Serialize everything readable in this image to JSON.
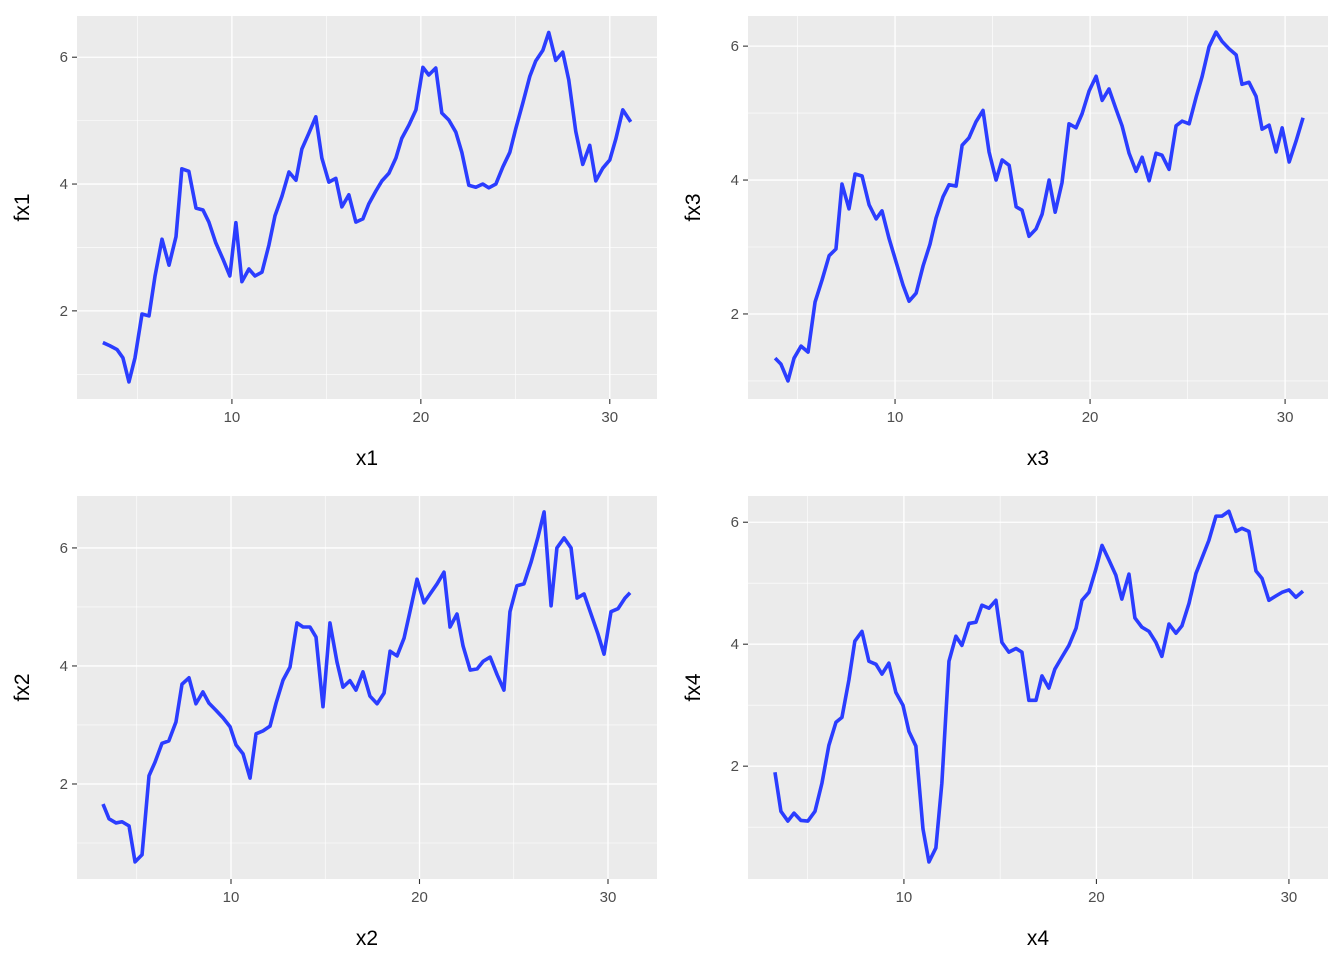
{
  "chart_data": [
    {
      "type": "line",
      "xlabel": "x1",
      "ylabel": "fx1",
      "xlim": [
        1.8,
        32.5
      ],
      "ylim": [
        0.61,
        6.65
      ],
      "xticks": [
        10,
        20,
        30
      ],
      "yticks": [
        2,
        4,
        6
      ],
      "x_minor_ticks": [
        5,
        15,
        25
      ],
      "y_minor_ticks": [
        1,
        3,
        5
      ],
      "grid": true,
      "series": [
        {
          "color": "#2b3dff",
          "x": [
            3.17,
            3.54,
            3.92,
            4.23,
            4.55,
            4.87,
            5.24,
            5.61,
            5.93,
            6.3,
            6.67,
            7.04,
            7.35,
            7.72,
            8.1,
            8.47,
            8.78,
            9.15,
            9.52,
            9.89,
            10.21,
            10.53,
            10.9,
            11.22,
            11.59,
            11.96,
            12.28,
            12.65,
            13.02,
            13.39,
            13.7,
            14.07,
            14.44,
            14.76,
            15.13,
            15.5,
            15.82,
            16.19,
            16.56,
            16.93,
            17.25,
            17.62,
            17.94,
            18.31,
            18.68,
            18.99,
            19.37,
            19.74,
            20.11,
            20.42,
            20.79,
            21.11,
            21.48,
            21.85,
            22.17,
            22.54,
            22.91,
            23.28,
            23.6,
            23.97,
            24.34,
            24.71,
            25.03,
            25.4,
            25.77,
            26.08,
            26.46,
            26.77,
            27.14,
            27.51,
            27.83,
            28.2,
            28.57,
            28.94,
            29.26,
            29.63,
            30.0,
            30.32,
            30.69,
            31.11
          ],
          "values": [
            1.5,
            1.45,
            1.39,
            1.26,
            0.88,
            1.26,
            1.95,
            1.92,
            2.55,
            3.13,
            2.72,
            3.17,
            4.24,
            4.2,
            3.62,
            3.59,
            3.4,
            3.07,
            2.82,
            2.55,
            3.39,
            2.46,
            2.66,
            2.55,
            2.61,
            3.04,
            3.5,
            3.81,
            4.19,
            4.06,
            4.55,
            4.8,
            5.06,
            4.41,
            4.03,
            4.09,
            3.64,
            3.83,
            3.4,
            3.45,
            3.69,
            3.89,
            4.05,
            4.17,
            4.41,
            4.72,
            4.93,
            5.17,
            5.84,
            5.72,
            5.83,
            5.12,
            5.01,
            4.82,
            4.5,
            3.98,
            3.95,
            4.0,
            3.94,
            4.0,
            4.27,
            4.5,
            4.88,
            5.28,
            5.7,
            5.94,
            6.11,
            6.39,
            5.95,
            6.08,
            5.64,
            4.83,
            4.31,
            4.61,
            4.05,
            4.25,
            4.38,
            4.71,
            5.17,
            4.98
          ]
        }
      ]
    },
    {
      "type": "line",
      "xlabel": "x3",
      "ylabel": "fx3",
      "xlim": [
        2.46,
        32.2
      ],
      "ylim": [
        0.73,
        6.45
      ],
      "xticks": [
        10,
        20,
        30
      ],
      "yticks": [
        2,
        4,
        6
      ],
      "x_minor_ticks": [
        5,
        15,
        25
      ],
      "y_minor_ticks": [
        1,
        3,
        5
      ],
      "grid": true,
      "series": [
        {
          "color": "#2b3dff",
          "x": [
            3.85,
            4.15,
            4.51,
            4.82,
            5.18,
            5.54,
            5.9,
            6.26,
            6.62,
            6.97,
            7.28,
            7.64,
            7.95,
            8.31,
            8.67,
            9.03,
            9.33,
            9.69,
            10.05,
            10.41,
            10.72,
            11.08,
            11.44,
            11.79,
            12.1,
            12.46,
            12.77,
            13.13,
            13.44,
            13.79,
            14.15,
            14.51,
            14.82,
            15.18,
            15.49,
            15.85,
            16.21,
            16.51,
            16.87,
            17.23,
            17.54,
            17.9,
            18.21,
            18.56,
            18.92,
            19.28,
            19.59,
            19.95,
            20.31,
            20.62,
            20.97,
            21.33,
            21.64,
            22.0,
            22.36,
            22.67,
            23.03,
            23.38,
            23.69,
            24.05,
            24.41,
            24.72,
            25.08,
            25.44,
            25.74,
            26.1,
            26.46,
            26.77,
            27.13,
            27.49,
            27.79,
            28.15,
            28.51,
            28.82,
            29.18,
            29.54,
            29.85,
            30.21,
            30.56,
            30.92
          ],
          "values": [
            1.34,
            1.25,
            1.0,
            1.34,
            1.52,
            1.43,
            2.18,
            2.51,
            2.87,
            2.97,
            3.94,
            3.57,
            4.09,
            4.06,
            3.63,
            3.42,
            3.54,
            3.13,
            2.78,
            2.43,
            2.19,
            2.31,
            2.72,
            3.04,
            3.43,
            3.75,
            3.93,
            3.91,
            4.52,
            4.63,
            4.87,
            5.04,
            4.42,
            4.0,
            4.3,
            4.22,
            3.6,
            3.55,
            3.16,
            3.27,
            3.49,
            4.0,
            3.52,
            3.96,
            4.84,
            4.78,
            4.99,
            5.33,
            5.55,
            5.19,
            5.36,
            5.06,
            4.81,
            4.4,
            4.13,
            4.34,
            3.99,
            4.4,
            4.37,
            4.16,
            4.81,
            4.88,
            4.84,
            5.24,
            5.54,
            5.99,
            6.21,
            6.07,
            5.96,
            5.87,
            5.43,
            5.46,
            5.25,
            4.76,
            4.82,
            4.42,
            4.78,
            4.27,
            4.58,
            4.93
          ]
        }
      ]
    },
    {
      "type": "line",
      "xlabel": "x2",
      "ylabel": "fx2",
      "xlim": [
        1.83,
        32.6
      ],
      "ylim": [
        0.39,
        6.88
      ],
      "xticks": [
        10,
        20,
        30
      ],
      "yticks": [
        2,
        4,
        6
      ],
      "x_minor_ticks": [
        5,
        15,
        25
      ],
      "y_minor_ticks": [
        1,
        3,
        5
      ],
      "grid": true,
      "series": [
        {
          "color": "#2b3dff",
          "x": [
            3.21,
            3.53,
            3.9,
            4.22,
            4.59,
            4.91,
            5.28,
            5.65,
            5.97,
            6.34,
            6.7,
            7.08,
            7.4,
            7.77,
            8.14,
            8.51,
            8.83,
            9.2,
            9.58,
            9.95,
            10.27,
            10.64,
            11.01,
            11.33,
            11.7,
            12.07,
            12.39,
            12.76,
            13.13,
            13.5,
            13.82,
            14.19,
            14.51,
            14.88,
            15.25,
            15.62,
            15.94,
            16.31,
            16.63,
            17.0,
            17.37,
            17.75,
            18.12,
            18.44,
            18.81,
            19.18,
            19.5,
            19.87,
            20.24,
            20.56,
            20.93,
            21.3,
            21.62,
            21.99,
            22.31,
            22.69,
            23.06,
            23.38,
            23.75,
            24.12,
            24.48,
            24.8,
            25.17,
            25.54,
            25.92,
            26.29,
            26.61,
            26.98,
            27.29,
            27.67,
            28.04,
            28.36,
            28.73,
            29.1,
            29.47,
            29.79,
            30.16,
            30.53,
            30.9,
            31.17
          ],
          "values": [
            1.66,
            1.41,
            1.34,
            1.36,
            1.29,
            0.68,
            0.8,
            2.14,
            2.37,
            2.69,
            2.73,
            3.05,
            3.69,
            3.8,
            3.36,
            3.56,
            3.37,
            3.25,
            3.12,
            2.97,
            2.66,
            2.51,
            2.1,
            2.85,
            2.9,
            2.98,
            3.37,
            3.76,
            3.98,
            4.73,
            4.66,
            4.66,
            4.49,
            3.31,
            4.73,
            4.07,
            3.64,
            3.75,
            3.59,
            3.9,
            3.49,
            3.36,
            3.54,
            4.25,
            4.17,
            4.47,
            4.93,
            5.47,
            5.07,
            5.22,
            5.39,
            5.59,
            4.66,
            4.88,
            4.34,
            3.93,
            3.95,
            4.08,
            4.15,
            3.85,
            3.59,
            4.92,
            5.36,
            5.39,
            5.76,
            6.19,
            6.61,
            5.02,
            6.0,
            6.17,
            6.0,
            5.15,
            5.22,
            4.88,
            4.54,
            4.2,
            4.92,
            4.97,
            5.15,
            5.24
          ]
        }
      ]
    },
    {
      "type": "line",
      "xlabel": "x4",
      "ylabel": "fx4",
      "xlim": [
        1.9,
        32.03
      ],
      "ylim": [
        0.15,
        6.43
      ],
      "xticks": [
        10,
        20,
        30
      ],
      "yticks": [
        2,
        4,
        6
      ],
      "x_minor_ticks": [
        5,
        15,
        25
      ],
      "y_minor_ticks": [
        1,
        3,
        5
      ],
      "grid": true,
      "series": [
        {
          "color": "#2b3dff",
          "x": [
            3.3,
            3.61,
            3.97,
            4.29,
            4.65,
            5.01,
            5.38,
            5.74,
            6.1,
            6.47,
            6.78,
            7.14,
            7.45,
            7.82,
            8.18,
            8.55,
            8.86,
            9.22,
            9.58,
            9.95,
            10.26,
            10.62,
            10.99,
            11.3,
            11.66,
            11.97,
            12.34,
            12.7,
            13.01,
            13.38,
            13.74,
            14.05,
            14.42,
            14.78,
            15.09,
            15.45,
            15.82,
            16.13,
            16.49,
            16.86,
            17.17,
            17.53,
            17.84,
            18.21,
            18.57,
            18.94,
            19.25,
            19.61,
            19.97,
            20.29,
            20.65,
            21.01,
            21.32,
            21.69,
            22.0,
            22.36,
            22.73,
            23.09,
            23.4,
            23.77,
            24.13,
            24.44,
            24.81,
            25.17,
            25.48,
            25.84,
            26.21,
            26.52,
            26.88,
            27.25,
            27.56,
            27.92,
            28.29,
            28.6,
            28.96,
            29.32,
            29.64,
            30.0,
            30.36,
            30.73
          ],
          "values": [
            1.9,
            1.26,
            1.1,
            1.23,
            1.11,
            1.1,
            1.26,
            1.72,
            2.34,
            2.72,
            2.8,
            3.41,
            4.05,
            4.21,
            3.72,
            3.67,
            3.51,
            3.69,
            3.21,
            3.0,
            2.57,
            2.33,
            0.97,
            0.43,
            0.66,
            1.72,
            3.72,
            4.13,
            3.98,
            4.34,
            4.36,
            4.64,
            4.59,
            4.72,
            4.03,
            3.87,
            3.93,
            3.87,
            3.08,
            3.08,
            3.48,
            3.28,
            3.59,
            3.79,
            3.98,
            4.26,
            4.72,
            4.85,
            5.23,
            5.62,
            5.38,
            5.13,
            4.74,
            5.15,
            4.43,
            4.28,
            4.21,
            4.03,
            3.8,
            4.33,
            4.18,
            4.3,
            4.67,
            5.16,
            5.41,
            5.7,
            6.1,
            6.1,
            6.18,
            5.85,
            5.9,
            5.85,
            5.2,
            5.08,
            4.72,
            4.79,
            4.85,
            4.89,
            4.77,
            4.87
          ]
        }
      ]
    }
  ]
}
